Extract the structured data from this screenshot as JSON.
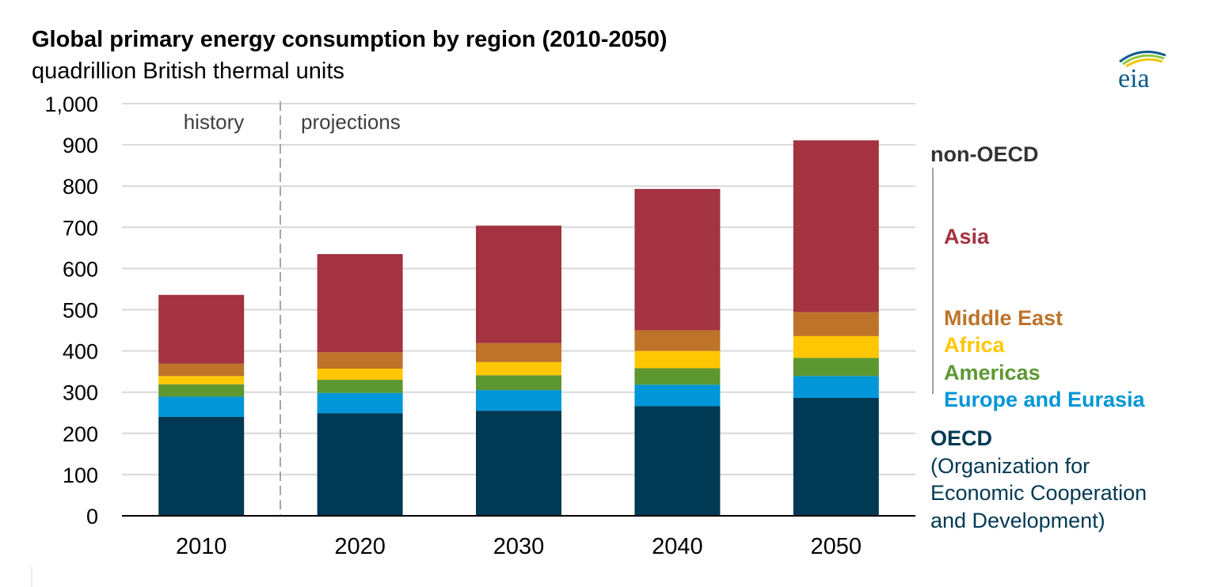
{
  "chart_data": {
    "type": "bar",
    "stacked": true,
    "title": "Global primary energy consumption by region (2010-2050)",
    "subtitle": "quadrillion British thermal units",
    "categories": [
      "2010",
      "2020",
      "2030",
      "2040",
      "2050"
    ],
    "series": [
      {
        "name": "OECD",
        "color": "#003953",
        "values": [
          240,
          249,
          255,
          266,
          286
        ]
      },
      {
        "name": "Europe and Eurasia",
        "color": "#0096d7",
        "values": [
          49,
          49,
          50,
          52,
          53
        ]
      },
      {
        "name": "Americas",
        "color": "#5d9732",
        "values": [
          30,
          32,
          36,
          40,
          44
        ]
      },
      {
        "name": "Africa",
        "color": "#ffc702",
        "values": [
          20,
          27,
          32,
          42,
          53
        ]
      },
      {
        "name": "Middle East",
        "color": "#bd732a",
        "values": [
          30,
          40,
          46,
          50,
          58
        ]
      },
      {
        "name": "Asia",
        "color": "#a33340",
        "values": [
          167,
          238,
          285,
          343,
          417
        ]
      }
    ],
    "yticks": [
      "0",
      "100",
      "200",
      "300",
      "400",
      "500",
      "600",
      "700",
      "800",
      "900",
      "1,000"
    ],
    "ylim": [
      0,
      1000
    ],
    "grid": true,
    "annotations": {
      "history": "history",
      "projections": "projections"
    }
  },
  "legend": {
    "non_oecd": "non-OECD",
    "asia": "Asia",
    "middle_east": "Middle East",
    "africa": "Africa",
    "americas": "Americas",
    "europe": "Europe and Eurasia",
    "oecd": "OECD",
    "oecd_line1": "(Organization for",
    "oecd_line2": "Economic Cooperation",
    "oecd_line3": "and Development)"
  },
  "logo_text": "eia",
  "colors": {
    "grid": "#d9d9d9",
    "axis": "#000000",
    "divider": "#a6a6a6",
    "logo_blue": "#0a5a8c",
    "logo_green": "#8dc63f",
    "logo_yellow": "#f4c400"
  }
}
